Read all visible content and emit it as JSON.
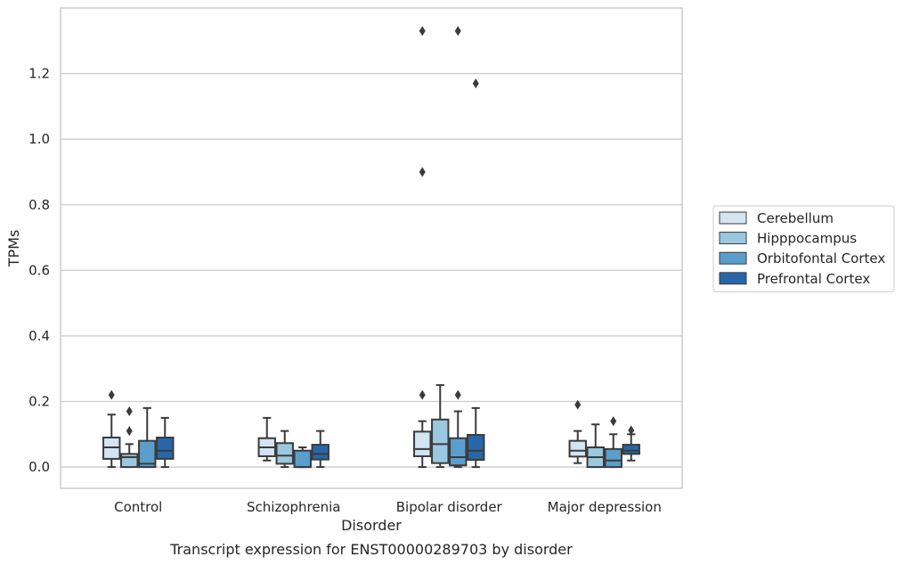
{
  "chart_data": {
    "type": "box",
    "caption": "Transcript expression for ENST00000289703 by disorder",
    "xlabel": "Disorder",
    "ylabel": "TPMs",
    "ylim": [
      -0.065,
      1.4
    ],
    "yticks": [
      0.0,
      0.2,
      0.4,
      0.6,
      0.8,
      1.0,
      1.2
    ],
    "ytick_labels": [
      "0.0",
      "0.2",
      "0.4",
      "0.6",
      "0.8",
      "1.0",
      "1.2"
    ],
    "grid": "horizontal",
    "legend_position": "right",
    "categories": [
      "Control",
      "Schizophrenia",
      "Bipolar disorder",
      "Major depression"
    ],
    "series": [
      {
        "name": "Cerebellum",
        "color": "#d3e4f3",
        "boxes": [
          {
            "whislo": 0.0,
            "q1": 0.025,
            "med": 0.06,
            "q3": 0.09,
            "whishi": 0.16,
            "fliers": [
              0.22
            ]
          },
          {
            "whislo": 0.02,
            "q1": 0.033,
            "med": 0.06,
            "q3": 0.088,
            "whishi": 0.15,
            "fliers": []
          },
          {
            "whislo": 0.0,
            "q1": 0.033,
            "med": 0.055,
            "q3": 0.108,
            "whishi": 0.14,
            "fliers": [
              0.22,
              0.9,
              1.33
            ]
          },
          {
            "whislo": 0.012,
            "q1": 0.032,
            "med": 0.05,
            "q3": 0.08,
            "whishi": 0.11,
            "fliers": [
              0.19
            ]
          }
        ]
      },
      {
        "name": "Hipppocampus",
        "color": "#9ac8e0",
        "boxes": [
          {
            "whislo": 0.0,
            "q1": 0.0,
            "med": 0.03,
            "q3": 0.04,
            "whishi": 0.07,
            "fliers": [
              0.11,
              0.17
            ]
          },
          {
            "whislo": 0.0,
            "q1": 0.01,
            "med": 0.035,
            "q3": 0.073,
            "whishi": 0.11,
            "fliers": []
          },
          {
            "whislo": 0.0,
            "q1": 0.012,
            "med": 0.07,
            "q3": 0.145,
            "whishi": 0.25,
            "fliers": []
          },
          {
            "whislo": 0.0,
            "q1": 0.0,
            "med": 0.03,
            "q3": 0.06,
            "whishi": 0.13,
            "fliers": []
          }
        ]
      },
      {
        "name": "Orbitofontal Cortex",
        "color": "#5a9ecd",
        "boxes": [
          {
            "whislo": 0.0,
            "q1": 0.0,
            "med": 0.01,
            "q3": 0.08,
            "whishi": 0.18,
            "fliers": []
          },
          {
            "whislo": 0.0,
            "q1": 0.0,
            "med": 0.0,
            "q3": 0.05,
            "whishi": 0.06,
            "fliers": []
          },
          {
            "whislo": 0.0,
            "q1": 0.005,
            "med": 0.03,
            "q3": 0.088,
            "whishi": 0.17,
            "fliers": [
              0.22,
              1.33
            ]
          },
          {
            "whislo": 0.0,
            "q1": 0.0,
            "med": 0.02,
            "q3": 0.055,
            "whishi": 0.1,
            "fliers": [
              0.14
            ]
          }
        ]
      },
      {
        "name": "Prefrontal Cortex",
        "color": "#2767a9",
        "boxes": [
          {
            "whislo": 0.0,
            "q1": 0.025,
            "med": 0.05,
            "q3": 0.09,
            "whishi": 0.15,
            "fliers": []
          },
          {
            "whislo": 0.0,
            "q1": 0.023,
            "med": 0.04,
            "q3": 0.068,
            "whishi": 0.11,
            "fliers": []
          },
          {
            "whislo": 0.0,
            "q1": 0.022,
            "med": 0.05,
            "q3": 0.098,
            "whishi": 0.18,
            "fliers": [
              1.17
            ]
          },
          {
            "whislo": 0.02,
            "q1": 0.04,
            "med": 0.05,
            "q3": 0.068,
            "whishi": 0.1,
            "fliers": [
              0.112
            ]
          }
        ]
      }
    ]
  }
}
